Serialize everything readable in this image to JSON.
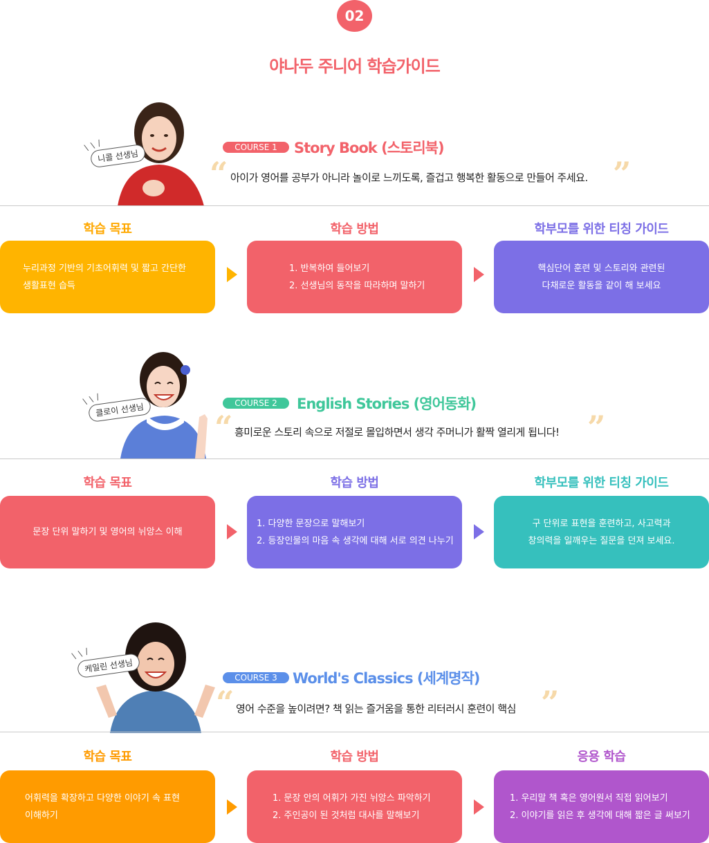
{
  "header": {
    "step": "02",
    "title": "야나두 주니어 학습가이드"
  },
  "colors": {
    "red": "#f2626a",
    "yellow": "#ffb400",
    "purple": "#7c6fe6",
    "teal": "#36c0bd",
    "orange": "#ff9b00",
    "violet": "#b056cc",
    "green": "#3fc79a",
    "blue": "#5b8fe9"
  },
  "courses": [
    {
      "teacher": "니콜 선생님",
      "course_label": "COURSE 1",
      "title": "Story Book (스토리북)",
      "quote": "아이가 영어를 공부가 아니라 놀이로 느끼도록, 즐겁고 행복한 활동으로 만들어 주세요.",
      "columns": [
        {
          "heading": "학습 목표",
          "lines": [
            "누리과정 기반의 기초어휘력 및 짧고 간단한",
            "생활표현 습득"
          ]
        },
        {
          "heading": "학습 방법",
          "lines": [
            "1. 반복하여 들어보기",
            "2. 선생님의 동작을 따라하며 말하기"
          ]
        },
        {
          "heading": "학부모를 위한 티칭 가이드",
          "lines": [
            "핵심단어 훈련 및 스토리와 관련된",
            "다채로운 활동을 같이 해 보세요"
          ]
        }
      ]
    },
    {
      "teacher": "클로이 선생님",
      "course_label": "COURSE 2",
      "title": "English Stories (영어동화)",
      "quote": "흥미로운 스토리 속으로 저절로 몰입하면서 생각 주머니가 활짝 열리게 됩니다!",
      "columns": [
        {
          "heading": "학습 목표",
          "lines": [
            "문장 단위 말하기 및 영어의 뉘앙스 이해"
          ]
        },
        {
          "heading": "학습 방법",
          "lines": [
            "1. 다양한 문장으로 말해보기",
            "2. 등장인물의 마음 속 생각에 대해 서로 의견 나누기"
          ]
        },
        {
          "heading": "학부모를 위한 티칭 가이드",
          "lines": [
            "구 단위로 표현을 훈련하고, 사고력과",
            "창의력을 일깨우는 질문을 던져 보세요."
          ]
        }
      ]
    },
    {
      "teacher": "케일린 선생님",
      "course_label": "COURSE 3",
      "title": "World's Classics (세계명작)",
      "quote": "영어 수준을 높이려면? 책 읽는 즐거움을 통한 리터러시 훈련이 핵심",
      "columns": [
        {
          "heading": "학습 목표",
          "lines": [
            "어휘력을 확장하고 다양한 이야기 속 표현",
            "이해하기"
          ]
        },
        {
          "heading": "학습 방법",
          "lines": [
            "1. 문장 안의 어휘가 가진 뉘앙스 파악하기",
            "2. 주인공이 된 것처럼 대사를 말해보기"
          ]
        },
        {
          "heading": "응용 학습",
          "lines": [
            "1. 우리말 책 혹은 영어원서 직접 읽어보기",
            "2. 이야기를 읽은 후 생각에 대해 짧은 글 써보기"
          ]
        }
      ]
    }
  ],
  "quote_open": "“",
  "quote_close": "”"
}
